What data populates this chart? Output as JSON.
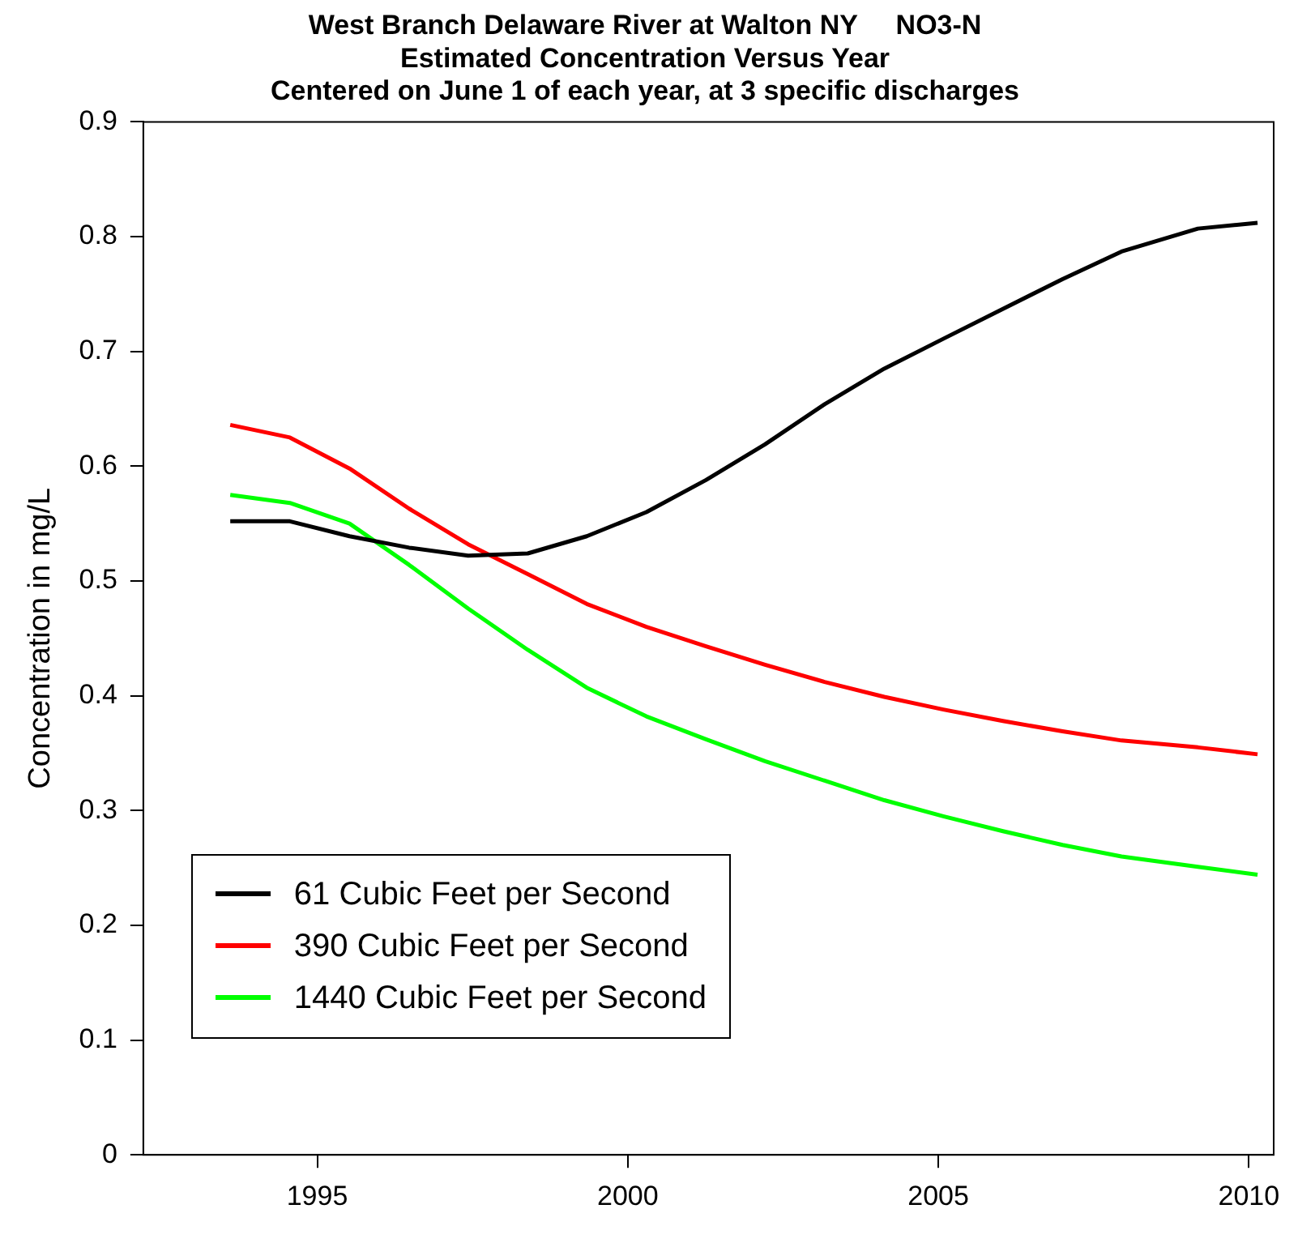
{
  "chart_data": {
    "type": "line",
    "title": "West Branch Delaware River at Walton NY     NO3-N",
    "subtitle": "Estimated Concentration Versus Year\nCentered on June 1 of each year, at 3 specific discharges",
    "ylabel": "Concentration in mg/L",
    "x": [
      1993.6,
      1994.56,
      1995.52,
      1996.48,
      1997.43,
      1998.39,
      1999.34,
      2000.3,
      2001.26,
      2002.21,
      2003.17,
      2004.13,
      2005.08,
      2006.04,
      2007.0,
      2007.95,
      2009.18,
      2010.14
    ],
    "series": [
      {
        "name": "61 Cubic Feet per Second",
        "color": "#000000",
        "values": [
          0.552,
          0.552,
          0.539,
          0.529,
          0.522,
          0.524,
          0.539,
          0.56,
          0.588,
          0.619,
          0.654,
          0.685,
          0.711,
          0.737,
          0.763,
          0.787,
          0.807,
          0.812
        ]
      },
      {
        "name": "390 Cubic Feet per Second",
        "color": "#ff0000",
        "values": [
          0.636,
          0.625,
          0.598,
          0.563,
          0.532,
          0.506,
          0.48,
          0.46,
          0.443,
          0.427,
          0.412,
          0.399,
          0.388,
          0.378,
          0.369,
          0.361,
          0.355,
          0.349
        ]
      },
      {
        "name": "1440 Cubic Feet per Second",
        "color": "#00ff00",
        "values": [
          0.575,
          0.568,
          0.55,
          0.514,
          0.476,
          0.44,
          0.407,
          0.382,
          0.362,
          0.343,
          0.326,
          0.309,
          0.295,
          0.282,
          0.27,
          0.26,
          0.251,
          0.244
        ]
      }
    ],
    "xlim": [
      1992.2,
      2010.4
    ],
    "xticks": [
      1995,
      2000,
      2005,
      2010
    ],
    "ylim": [
      0,
      0.9
    ],
    "yticks": [
      0,
      0.1,
      0.2,
      0.3,
      0.4,
      0.5,
      0.6,
      0.7,
      0.8,
      0.9
    ],
    "grid": false,
    "legend": "bottom left",
    "marker": "none",
    "line_style": "solid"
  }
}
